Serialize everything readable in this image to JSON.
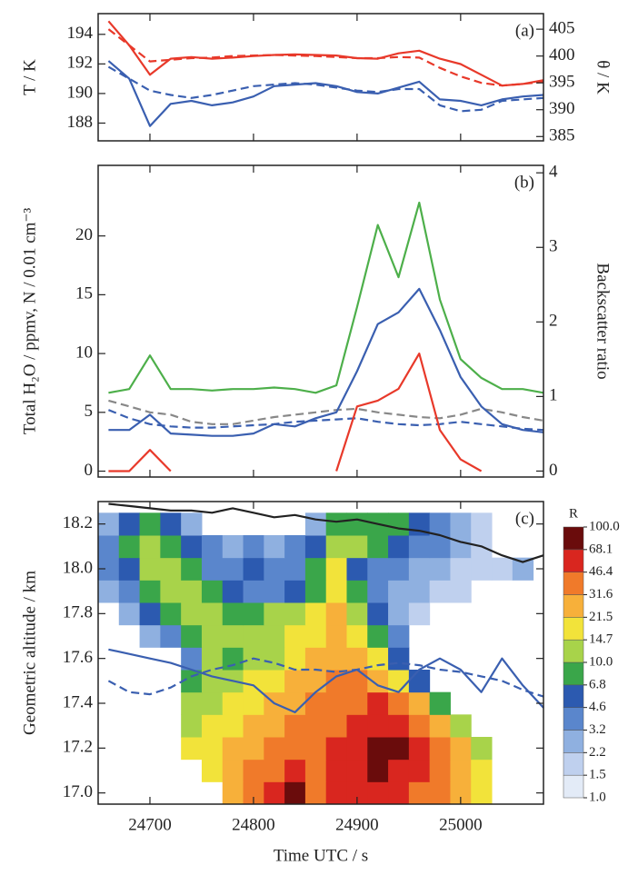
{
  "chart_data": [
    {
      "type": "line",
      "label": "(a)",
      "ylabel": "T / K",
      "y2label": "θ / K",
      "xlim": [
        24650,
        25080
      ],
      "ylim": [
        186.8,
        195.4
      ],
      "yticks": [
        188,
        190,
        192,
        194
      ],
      "y2lim": [
        384.2,
        407.9
      ],
      "y2ticks": [
        385,
        390,
        395,
        400,
        405
      ],
      "x": [
        24660,
        24680,
        24700,
        24720,
        24740,
        24760,
        24780,
        24800,
        24820,
        24840,
        24860,
        24880,
        24900,
        24920,
        24940,
        24960,
        24980,
        25000,
        25020,
        25040,
        25060,
        25080
      ],
      "series": [
        {
          "color": "#3a5fb0",
          "dash": false,
          "values": [
            192.2,
            191,
            187.8,
            189.3,
            189.5,
            189.2,
            189.4,
            189.8,
            190.5,
            190.6,
            190.7,
            190.5,
            190.1,
            190.0,
            190.4,
            190.8,
            189.6,
            189.5,
            189.2,
            189.6,
            189.8,
            189.9
          ]
        },
        {
          "color": "#3a5fb0",
          "dash": true,
          "values": [
            191.8,
            191,
            190.2,
            189.9,
            189.7,
            189.9,
            190.2,
            190.5,
            190.6,
            190.7,
            190.6,
            190.4,
            190.2,
            190.1,
            190.3,
            190.3,
            189.2,
            188.8,
            188.9,
            189.5,
            189.6,
            189.7
          ]
        },
        {
          "color": "#e8392a",
          "dash": false,
          "axis": "y2",
          "values": [
            406.5,
            402,
            396.5,
            399.5,
            399.8,
            399.5,
            399.7,
            400,
            400.2,
            400.3,
            400.2,
            400.1,
            399.6,
            399.5,
            400.5,
            401,
            399.5,
            398.5,
            396.5,
            394.5,
            394.8,
            395.5
          ]
        },
        {
          "color": "#e8392a",
          "dash": true,
          "axis": "y2",
          "values": [
            405,
            402,
            399,
            399.3,
            399.6,
            399.7,
            400,
            400.1,
            400.2,
            400.1,
            400,
            399.8,
            399.6,
            399.6,
            399.8,
            399.7,
            397.8,
            396.2,
            395,
            394.5,
            394.8,
            395.2
          ]
        }
      ]
    },
    {
      "type": "line",
      "label": "(b)",
      "ylabel": "Total H₂O / ppmv, N / 0.01 cm⁻³",
      "y2label": "Backscatter ratio",
      "xlim": [
        24650,
        25080
      ],
      "ylim": [
        -0.5,
        26
      ],
      "yticks": [
        0,
        5,
        10,
        15,
        20
      ],
      "y2lim": [
        -0.08,
        4.1
      ],
      "y2ticks": [
        0,
        1,
        2,
        3,
        4
      ],
      "x": [
        24660,
        24680,
        24700,
        24720,
        24740,
        24760,
        24780,
        24800,
        24820,
        24840,
        24860,
        24880,
        24900,
        24920,
        24940,
        24960,
        24980,
        25000,
        25020,
        25040,
        25060,
        25080
      ],
      "series": [
        {
          "color": "#888888",
          "dash": true,
          "values": [
            6,
            5.5,
            5,
            4.8,
            4.2,
            4.0,
            4.0,
            4.3,
            4.6,
            4.8,
            5.0,
            5.2,
            5.3,
            5.0,
            4.8,
            4.6,
            4.5,
            4.8,
            5.3,
            5.0,
            4.6,
            4.3
          ]
        },
        {
          "color": "#3a5fb0",
          "dash": true,
          "values": [
            5.2,
            4.5,
            4.0,
            3.8,
            3.7,
            3.7,
            3.8,
            3.9,
            4.0,
            4.2,
            4.3,
            4.4,
            4.5,
            4.2,
            4.0,
            3.9,
            4.0,
            4.2,
            4.0,
            3.8,
            3.6,
            3.5
          ]
        },
        {
          "color": "#4daf4a",
          "dash": false,
          "axis": "y2",
          "values": [
            1.05,
            1.1,
            1.55,
            1.1,
            1.1,
            1.08,
            1.1,
            1.1,
            1.12,
            1.1,
            1.05,
            1.15,
            2.2,
            3.3,
            2.6,
            3.6,
            2.3,
            1.5,
            1.25,
            1.1,
            1.1,
            1.05
          ]
        },
        {
          "color": "#3a5fb0",
          "dash": false,
          "values": [
            3.5,
            3.5,
            4.8,
            3.2,
            3.1,
            3.0,
            3.0,
            3.2,
            4.0,
            3.8,
            4.5,
            5.0,
            8.5,
            12.5,
            13.5,
            15.5,
            12.0,
            8.0,
            5.5,
            4.0,
            3.5,
            3.3
          ]
        },
        {
          "color": "#e8392a",
          "dash": false,
          "values": [
            0,
            0,
            1.8,
            0,
            null,
            null,
            null,
            null,
            null,
            null,
            null,
            0,
            5.5,
            6,
            7,
            10,
            3.5,
            1,
            0,
            null,
            null,
            null
          ]
        }
      ]
    },
    {
      "type": "heatmap",
      "label": "(c)",
      "ylabel": "Geometric altitude / km",
      "xlabel": "Time UTC / s",
      "xlim": [
        24650,
        25080
      ],
      "xticks": [
        24700,
        24800,
        24900,
        25000
      ],
      "ylim": [
        16.95,
        18.3
      ],
      "yticks": [
        {
          "value": 17,
          "label": "17.0"
        },
        17.2,
        17.4,
        17.6,
        17.8,
        {
          "value": 18,
          "label": "18.0"
        },
        18.2
      ],
      "x": [
        24660,
        24680,
        24700,
        24720,
        24740,
        24760,
        24780,
        24800,
        24820,
        24840,
        24860,
        24880,
        24900,
        24920,
        24940,
        24960,
        24980,
        25000,
        25020,
        25040,
        25060,
        25080
      ],
      "grid_y": [
        17.0,
        17.1,
        17.2,
        17.3,
        17.4,
        17.5,
        17.6,
        17.7,
        17.8,
        17.9,
        18.0,
        18.1,
        18.2
      ],
      "z": [
        [
          null,
          null,
          null,
          null,
          null,
          null,
          21.5,
          31.6,
          46.4,
          68.1,
          31.6,
          46.4,
          46.4,
          46.4,
          46.4,
          31.6,
          31.6,
          21.5,
          14.7,
          null,
          null,
          null
        ],
        [
          null,
          null,
          null,
          null,
          null,
          14.7,
          21.5,
          31.6,
          31.6,
          46.4,
          31.6,
          46.4,
          46.4,
          68.1,
          46.4,
          46.4,
          31.6,
          21.5,
          14.7,
          null,
          null,
          null
        ],
        [
          null,
          null,
          null,
          null,
          14.7,
          14.7,
          21.5,
          21.5,
          31.6,
          31.6,
          31.6,
          46.4,
          46.4,
          68.1,
          68.1,
          46.4,
          31.6,
          21.5,
          10,
          null,
          null,
          null
        ],
        [
          null,
          null,
          null,
          null,
          10,
          14.7,
          14.7,
          21.5,
          21.5,
          31.6,
          31.6,
          31.6,
          46.4,
          46.4,
          46.4,
          31.6,
          21.5,
          10,
          null,
          null,
          null,
          null
        ],
        [
          null,
          null,
          null,
          null,
          10,
          10,
          14.7,
          14.7,
          21.5,
          21.5,
          31.6,
          31.6,
          31.6,
          46.4,
          31.6,
          21.5,
          6.8,
          null,
          null,
          null,
          null,
          null
        ],
        [
          null,
          null,
          null,
          null,
          6.8,
          10,
          10,
          14.7,
          14.7,
          21.5,
          21.5,
          31.6,
          31.6,
          21.5,
          14.7,
          4.6,
          null,
          null,
          null,
          null,
          null,
          null
        ],
        [
          null,
          null,
          null,
          null,
          3.2,
          10,
          6.8,
          10,
          10,
          14.7,
          21.5,
          21.5,
          21.5,
          14.7,
          4.6,
          null,
          null,
          null,
          null,
          null,
          null,
          null
        ],
        [
          null,
          null,
          2.2,
          3.2,
          6.8,
          10,
          10,
          10,
          10,
          14.7,
          14.7,
          21.5,
          14.7,
          6.8,
          3.2,
          null,
          null,
          null,
          null,
          null,
          null,
          null
        ],
        [
          null,
          2.2,
          4.6,
          6.8,
          10,
          10,
          6.8,
          6.8,
          10,
          10,
          14.7,
          21.5,
          10,
          4.6,
          2.2,
          1.5,
          null,
          null,
          null,
          null,
          null,
          null
        ],
        [
          2.2,
          3.2,
          6.8,
          10,
          10,
          6.8,
          4.6,
          3.2,
          3.2,
          4.6,
          6.8,
          14.7,
          6.8,
          3.2,
          2.2,
          2.2,
          1.5,
          1.5,
          null,
          null,
          null,
          null
        ],
        [
          3.2,
          4.6,
          10,
          10,
          6.8,
          3.2,
          3.2,
          4.6,
          3.2,
          3.2,
          6.8,
          14.7,
          4.6,
          3.2,
          3.2,
          2.2,
          2.2,
          1.5,
          1.5,
          1.5,
          2.2,
          null
        ],
        [
          3.2,
          6.8,
          10,
          6.8,
          4.6,
          3.2,
          2.2,
          3.2,
          2.2,
          3.2,
          4.6,
          10,
          10,
          6.8,
          4.6,
          3.2,
          3.2,
          2.2,
          1.5,
          null,
          null,
          null
        ],
        [
          2.2,
          4.6,
          6.8,
          4.6,
          2.2,
          null,
          null,
          null,
          null,
          null,
          2.2,
          6.8,
          6.8,
          6.8,
          6.8,
          4.6,
          3.2,
          2.2,
          1.5,
          null,
          null,
          null
        ]
      ],
      "colorbar": {
        "title": "R",
        "levels": [
          {
            "value": 1,
            "label": "1.0"
          },
          1.5,
          2.2,
          3.2,
          4.6,
          6.8,
          {
            "value": 10,
            "label": "10.0"
          },
          14.7,
          21.5,
          31.6,
          46.4,
          68.1,
          {
            "value": 100,
            "label": "100.0"
          }
        ],
        "colors": [
          "#e3ebf7",
          "#bfd0ee",
          "#8fb0e0",
          "#5a86cc",
          "#2c5ab0",
          "#3aa64a",
          "#a8d34a",
          "#f2e33a",
          "#f7b03a",
          "#f07a2a",
          "#d9261f",
          "#6a0c0c"
        ]
      },
      "series": [
        {
          "color": "#222222",
          "dash": false,
          "values": [
            18.29,
            18.28,
            18.27,
            18.26,
            18.26,
            18.25,
            18.27,
            18.25,
            18.23,
            18.24,
            18.22,
            18.21,
            18.22,
            18.2,
            18.18,
            18.17,
            18.15,
            18.12,
            18.1,
            18.06,
            18.03,
            18.06
          ]
        },
        {
          "color": "#3a5fb0",
          "dash": false,
          "values": [
            17.64,
            17.62,
            17.6,
            17.58,
            17.55,
            17.52,
            17.5,
            17.48,
            17.4,
            17.36,
            17.45,
            17.52,
            17.55,
            17.48,
            17.45,
            17.55,
            17.6,
            17.55,
            17.45,
            17.6,
            17.48,
            17.38
          ]
        },
        {
          "color": "#3a5fb0",
          "dash": true,
          "values": [
            17.5,
            17.45,
            17.44,
            17.47,
            17.52,
            17.55,
            17.57,
            17.6,
            17.58,
            17.55,
            17.55,
            17.54,
            17.55,
            17.57,
            17.58,
            17.57,
            17.55,
            17.54,
            17.52,
            17.5,
            17.46,
            17.43
          ]
        }
      ]
    }
  ]
}
